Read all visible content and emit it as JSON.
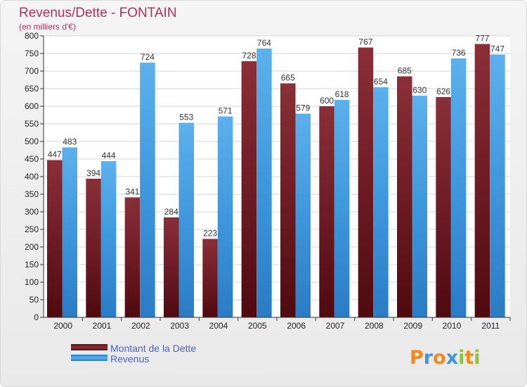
{
  "chart_data": {
    "type": "bar",
    "title": "Revenus/Dette - FONTAIN",
    "subtitle": "(en milliers d'€)",
    "categories": [
      "2000",
      "2001",
      "2002",
      "2003",
      "2004",
      "2005",
      "2006",
      "2007",
      "2008",
      "2009",
      "2010",
      "2011"
    ],
    "series": [
      {
        "name": "Montant de la Dette",
        "color": "#7b2230",
        "values": [
          447,
          394,
          341,
          284,
          223,
          728,
          665,
          600,
          767,
          685,
          626,
          777
        ]
      },
      {
        "name": "Revenus",
        "color": "#3e97dc",
        "values": [
          483,
          444,
          724,
          553,
          571,
          764,
          579,
          618,
          654,
          630,
          736,
          747
        ]
      }
    ],
    "ylim": [
      0,
      800
    ],
    "ytick_step": 50,
    "grid": true,
    "legend_position": "bottom-left"
  },
  "brand": {
    "letters": [
      "P",
      "r",
      "o",
      "x",
      "i",
      "t",
      "i"
    ],
    "colors": [
      "#f08a1c",
      "#3e97dc",
      "#f08a1c",
      "#3e97dc",
      "#8cc63f",
      "#f08a1c",
      "#8cc63f"
    ]
  }
}
